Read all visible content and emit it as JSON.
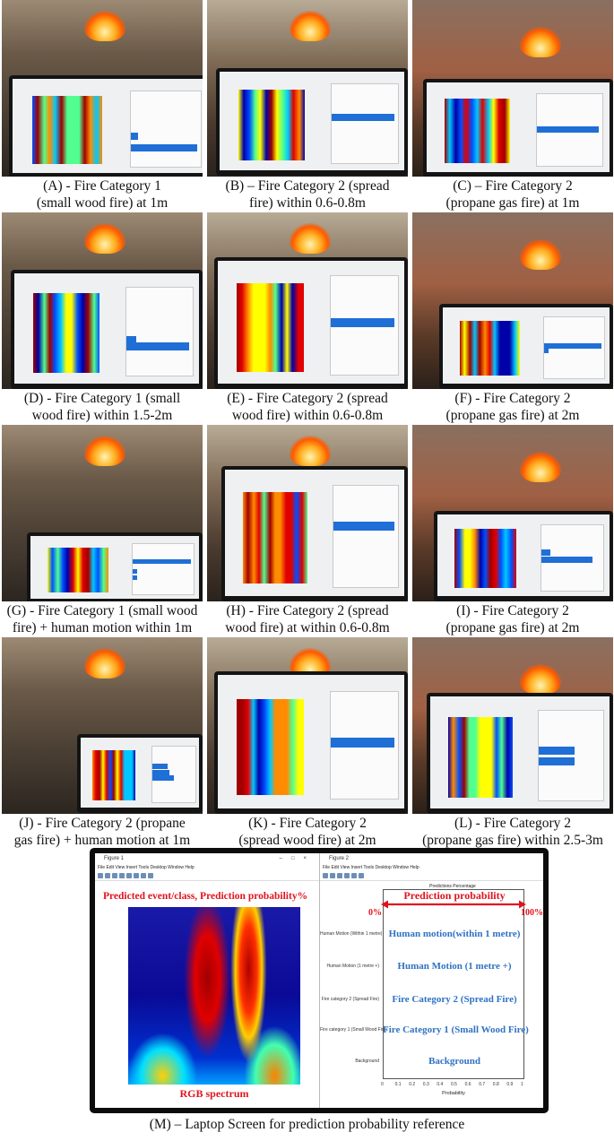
{
  "panels": [
    {
      "id": "A",
      "caption": [
        "(A) - Fire Category 1",
        "(small wood fire) at 1m"
      ]
    },
    {
      "id": "B",
      "caption": [
        "(B) – Fire Category 2 (spread",
        "fire) within 0.6-0.8m"
      ]
    },
    {
      "id": "C",
      "caption": [
        "(C) – Fire Category 2",
        "(propane gas fire) at 1m"
      ]
    },
    {
      "id": "D",
      "caption": [
        "(D) - Fire Category 1 (small",
        "wood fire) within 1.5-2m"
      ]
    },
    {
      "id": "E",
      "caption": [
        "(E) - Fire Category 2 (spread",
        "wood fire) within 0.6-0.8m"
      ]
    },
    {
      "id": "F",
      "caption": [
        "(F) - Fire Category 2",
        "(propane gas fire) at 2m"
      ]
    },
    {
      "id": "G",
      "caption": [
        "(G) - Fire Category 1 (small wood",
        "fire) + human motion within 1m"
      ]
    },
    {
      "id": "H",
      "caption": [
        "(H) - Fire Category 2 (spread",
        "wood fire) at within 0.6-0.8m"
      ]
    },
    {
      "id": "I",
      "caption": [
        "(I) - Fire Category 2",
        "(propane gas fire) at 2m"
      ]
    },
    {
      "id": "J",
      "caption": [
        "(J) - Fire Category 2 (propane",
        "gas fire) + human motion at 1m"
      ]
    },
    {
      "id": "K",
      "caption": [
        "(K) - Fire Category 2",
        "(spread wood fire) at 2m"
      ]
    },
    {
      "id": "L",
      "caption": [
        "(L) - Fire Category 2",
        "(propane gas fire) within 2.5-3m"
      ]
    }
  ],
  "laptop": {
    "caption": "(M) – Laptop Screen for prediction probability reference",
    "figure1_title": "Figure 1",
    "figure2_title": "Figure 2",
    "menu": "File  Edit  View  Insert  Tools  Desktop  Window  Help",
    "plot_title": "Predictions Percentage",
    "annotation_top": "Predicted event/class, Prediction probability%",
    "annotation_spectrum": "RGB spectrum",
    "annotation_probability": "Prediction probability",
    "zero": "0%",
    "hundred": "100%",
    "classes": [
      {
        "axis": "Human Motion (Within 1 metre)",
        "label": "Human motion(within 1 metre)"
      },
      {
        "axis": "Human Motion (1 metre +)",
        "label": "Human Motion (1 metre +)"
      },
      {
        "axis": "Fire category 2 (Spread  Fire)",
        "label": "Fire Category 2 (Spread Fire)"
      },
      {
        "axis": "Fire category 1 (Small Wood Fire)",
        "label": "Fire Category 1 (Small Wood Fire)"
      },
      {
        "axis": "Background",
        "label": "Background"
      }
    ],
    "xticks": [
      "0",
      "0.1",
      "0.2",
      "0.3",
      "0.4",
      "0.5",
      "0.6",
      "0.7",
      "0.8",
      "0.9",
      "1"
    ],
    "xlabel": "Probability"
  }
}
